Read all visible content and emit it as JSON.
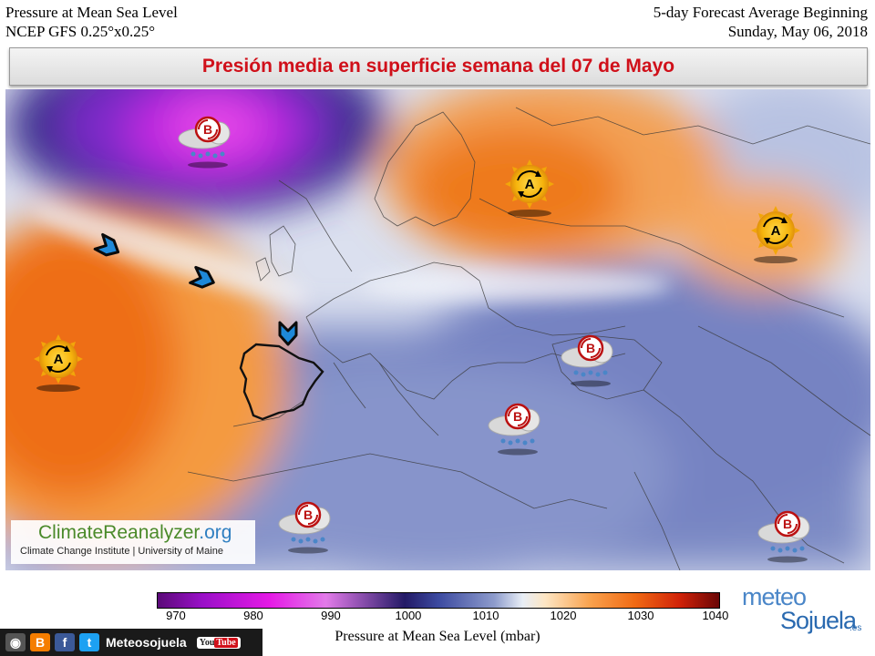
{
  "header": {
    "left_line1": "Pressure at Mean Sea Level",
    "left_line2": "NCEP GFS 0.25°x0.25°",
    "right_line1": "5-day Forecast Average Beginning",
    "right_line2": "Sunday, May 06, 2018"
  },
  "banner_title": "Presión media en superficie semana del 07 de Mayo",
  "map": {
    "high_label": "A",
    "low_label": "B",
    "systems": [
      {
        "type": "low",
        "name": "low-north-atlantic"
      },
      {
        "type": "high",
        "name": "high-scandinavia"
      },
      {
        "type": "high",
        "name": "high-russia"
      },
      {
        "type": "high",
        "name": "high-azores"
      },
      {
        "type": "low",
        "name": "low-black-sea"
      },
      {
        "type": "low",
        "name": "low-eastern-mediterranean"
      },
      {
        "type": "low",
        "name": "low-north-africa"
      },
      {
        "type": "low",
        "name": "low-arabia"
      }
    ],
    "flow_arrows": 3
  },
  "watermark": {
    "brand_a": "ClimateReanalyzer",
    "brand_b": ".org",
    "credit": "Climate Change Institute | University of Maine"
  },
  "colorbar": {
    "ticks": [
      "970",
      "980",
      "990",
      "1000",
      "1010",
      "1020",
      "1030",
      "1040"
    ],
    "label": "Pressure at Mean Sea Level (mbar)",
    "min": 970,
    "max": 1040,
    "colors": [
      "#5a0a78",
      "#e51ae6",
      "#231a66",
      "#8e9ccc",
      "#e8eef6",
      "#f9a24e",
      "#d02208",
      "#6a0606"
    ]
  },
  "footer": {
    "social_name": "Meteosojuela",
    "youtube_a": "You",
    "youtube_b": "Tube",
    "brand_top": "meteo",
    "brand_bottom": "Sojuela",
    "brand_suffix": ".es"
  }
}
